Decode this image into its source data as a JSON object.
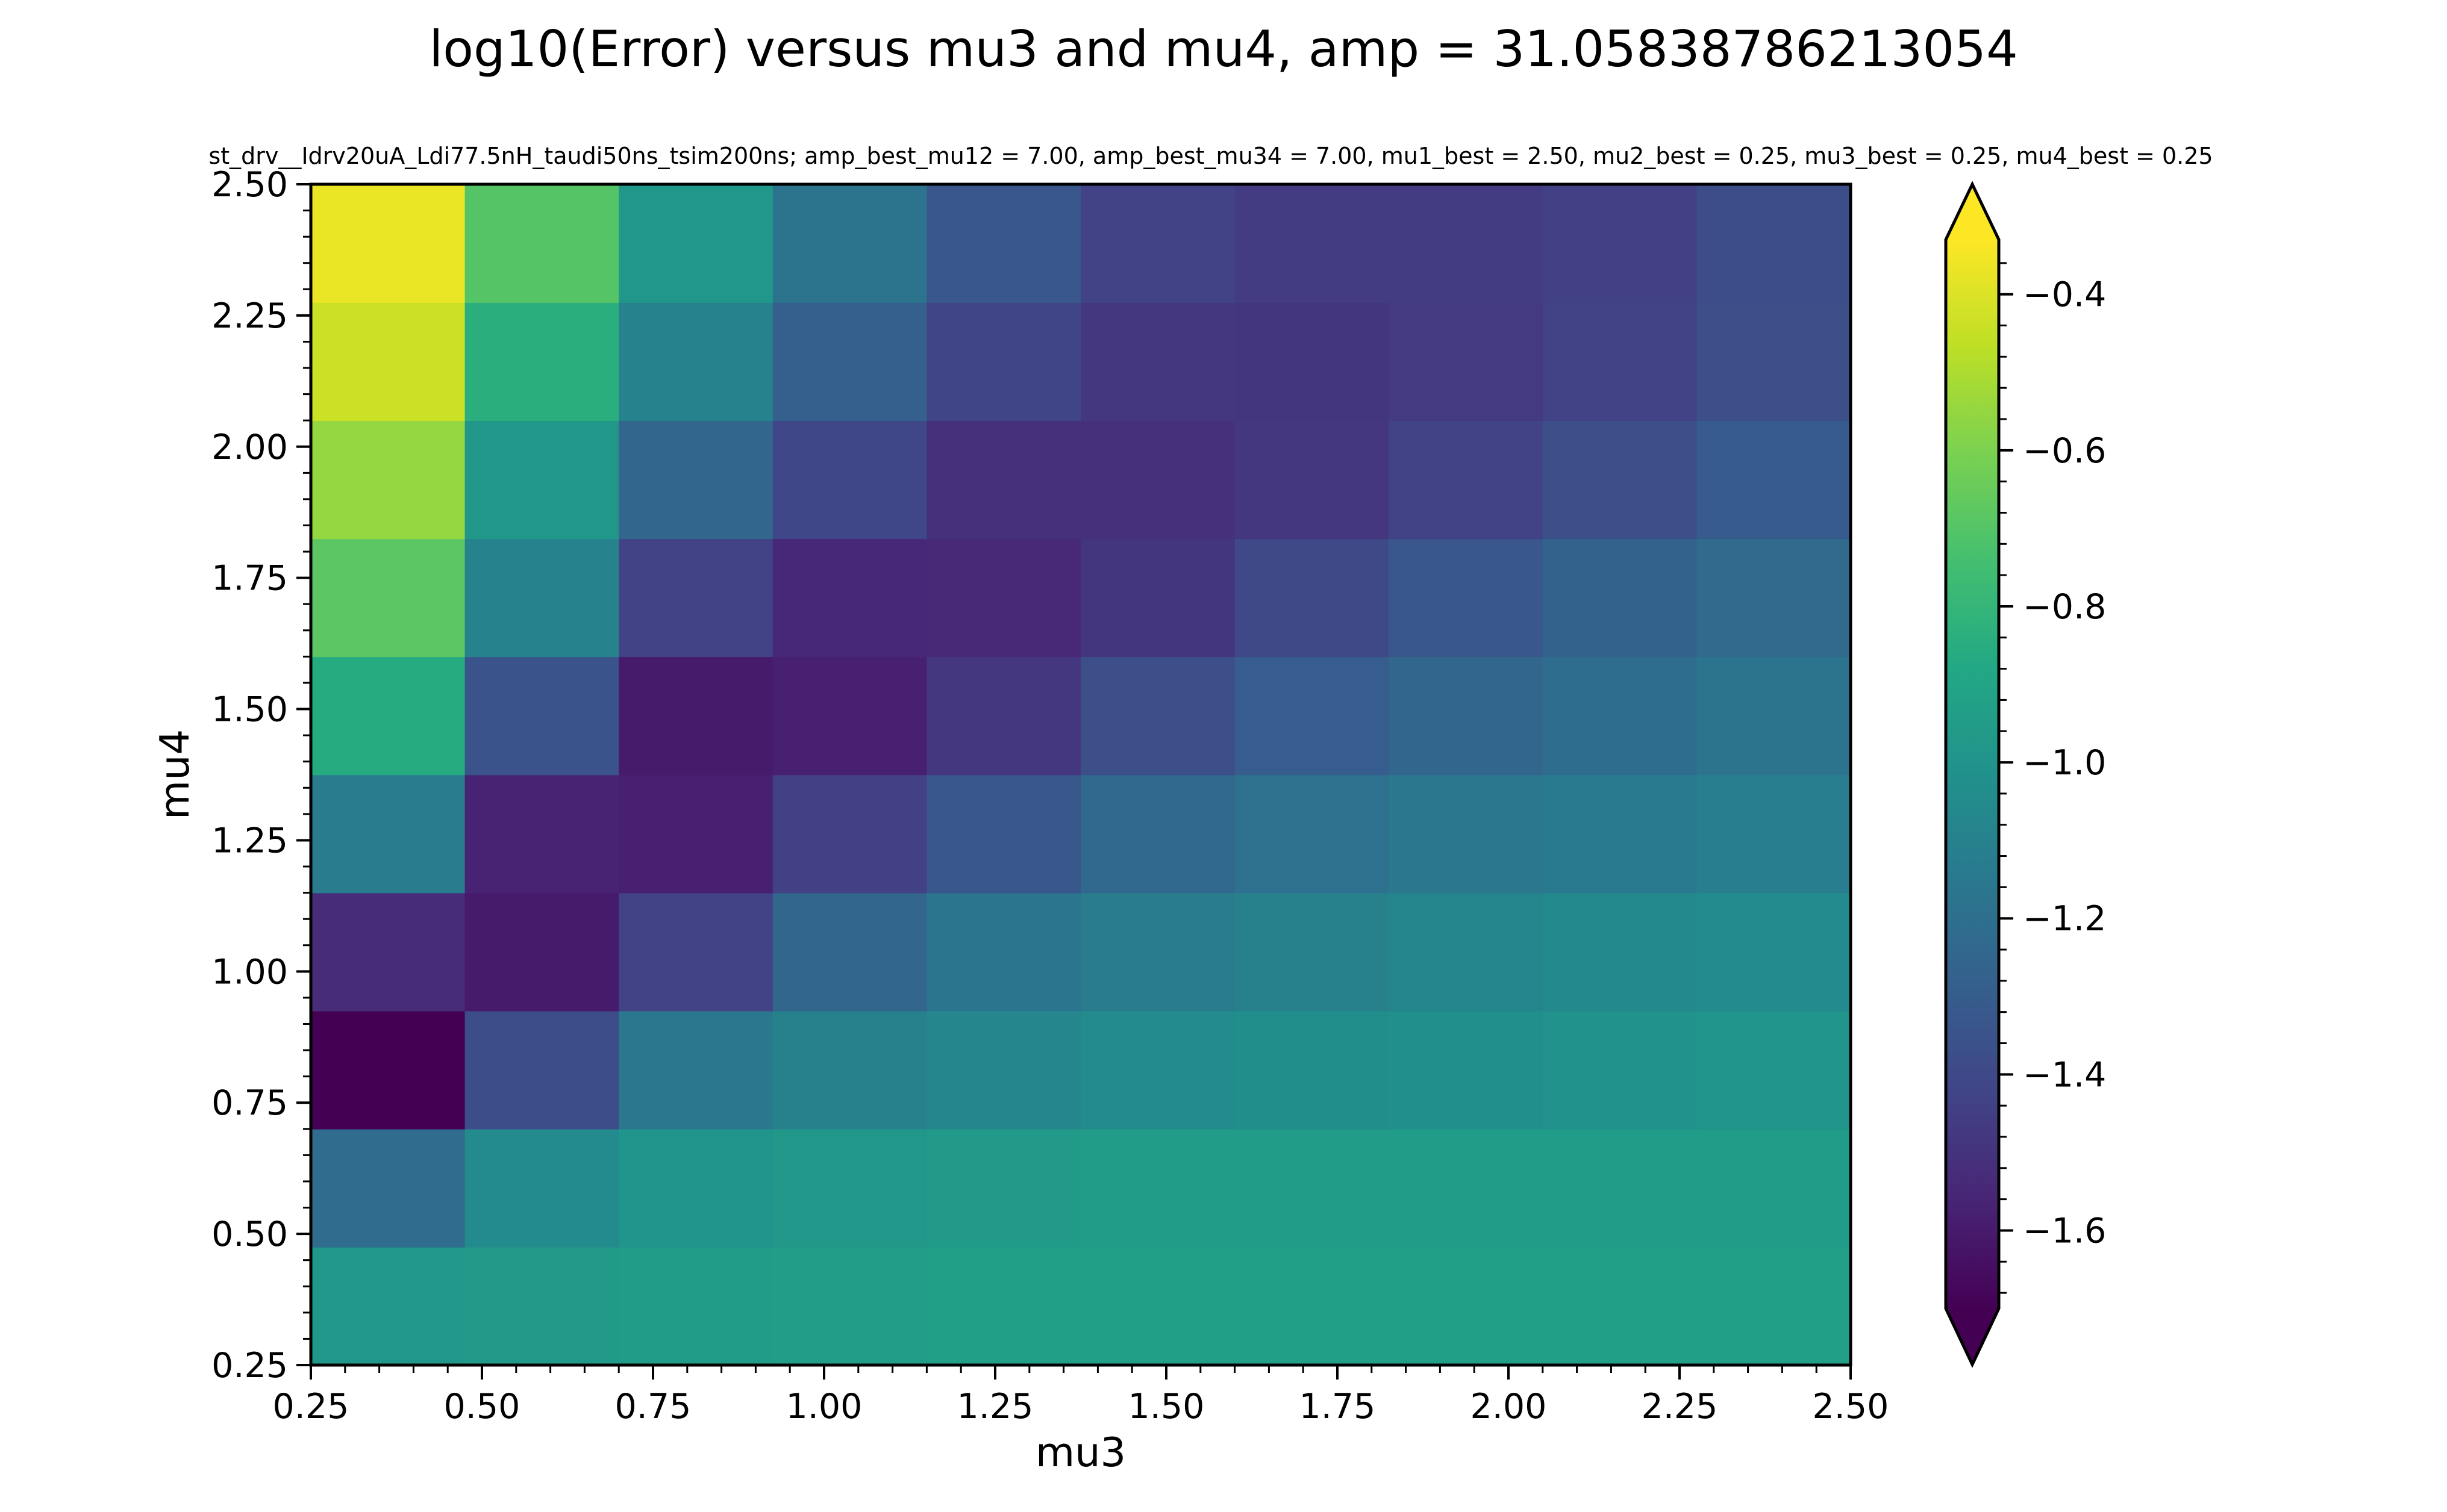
{
  "chart_data": {
    "type": "heatmap",
    "title": "log10(Error) versus mu3 and mu4, amp = 31.05838786213054",
    "subtitle": "st_drv__Idrv20uA_Ldi77.5nH_taudi50ns_tsim200ns; amp_best_mu12 = 7.00, amp_best_mu34 = 7.00, mu1_best = 2.50, mu2_best = 0.25, mu3_best = 0.25, mu4_best = 0.25",
    "xlabel": "mu3",
    "ylabel": "mu4",
    "xlim": [
      0.25,
      2.5
    ],
    "ylim": [
      0.25,
      2.5
    ],
    "x_ticks": [
      0.25,
      0.5,
      0.75,
      1.0,
      1.25,
      1.5,
      1.75,
      2.0,
      2.25,
      2.5
    ],
    "y_ticks": [
      0.25,
      0.5,
      0.75,
      1.0,
      1.25,
      1.5,
      1.75,
      2.0,
      2.25,
      2.5
    ],
    "x_tick_labels": [
      "0.25",
      "0.50",
      "0.75",
      "1.00",
      "1.25",
      "1.50",
      "1.75",
      "2.00",
      "2.25",
      "2.50"
    ],
    "y_tick_labels": [
      "0.25",
      "0.50",
      "0.75",
      "1.00",
      "1.25",
      "1.50",
      "1.75",
      "2.00",
      "2.25",
      "2.50"
    ],
    "colormap": "viridis",
    "colorbar": {
      "vmin": -1.7,
      "vmax": -0.33,
      "extend": "both",
      "ticks": [
        -1.6,
        -1.4,
        -1.2,
        -1.0,
        -0.8,
        -0.6,
        -0.4
      ],
      "tick_labels": [
        "−1.6",
        "−1.4",
        "−1.2",
        "−1.0",
        "−0.8",
        "−0.6",
        "−0.4"
      ]
    },
    "rows_note": "z[i][j]: i indexes mu4 from 0.25 (bottom) to 2.50 (top), j indexes mu3 from 0.25 (left) to 2.50 (right)",
    "z": [
      [
        -0.98,
        -0.96,
        -0.95,
        -0.94,
        -0.93,
        -0.93,
        -0.93,
        -0.93,
        -0.93,
        -0.93
      ],
      [
        -1.22,
        -1.05,
        -1.0,
        -0.98,
        -0.96,
        -0.95,
        -0.95,
        -0.95,
        -0.95,
        -0.95
      ],
      [
        -1.7,
        -1.38,
        -1.15,
        -1.1,
        -1.07,
        -1.05,
        -1.03,
        -1.02,
        -1.01,
        -1.0
      ],
      [
        -1.53,
        -1.6,
        -1.43,
        -1.25,
        -1.17,
        -1.13,
        -1.1,
        -1.08,
        -1.06,
        -1.05
      ],
      [
        -1.13,
        -1.57,
        -1.58,
        -1.44,
        -1.33,
        -1.24,
        -1.19,
        -1.16,
        -1.14,
        -1.12
      ],
      [
        -0.86,
        -1.35,
        -1.6,
        -1.58,
        -1.48,
        -1.37,
        -1.3,
        -1.25,
        -1.21,
        -1.18
      ],
      [
        -0.68,
        -1.09,
        -1.43,
        -1.55,
        -1.54,
        -1.49,
        -1.4,
        -1.33,
        -1.27,
        -1.23
      ],
      [
        -0.55,
        -0.98,
        -1.25,
        -1.41,
        -1.51,
        -1.51,
        -1.48,
        -1.43,
        -1.37,
        -1.31
      ],
      [
        -0.44,
        -0.84,
        -1.09,
        -1.29,
        -1.42,
        -1.48,
        -1.49,
        -1.47,
        -1.43,
        -1.37
      ],
      [
        -0.37,
        -0.7,
        -0.98,
        -1.18,
        -1.33,
        -1.43,
        -1.46,
        -1.46,
        -1.44,
        -1.38
      ]
    ]
  }
}
